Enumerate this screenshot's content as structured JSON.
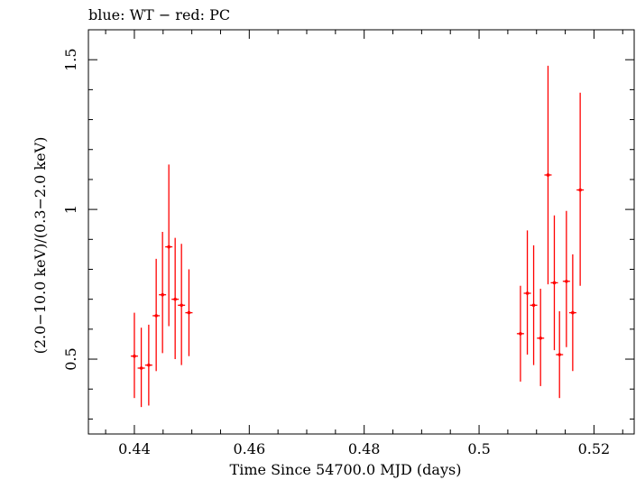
{
  "chart_data": {
    "type": "scatter",
    "title": "blue: WT − red: PC",
    "xlabel": "Time Since 54700.0 MJD (days)",
    "ylabel": "(2.0−10.0 keV)/(0.3−2.0 keV)",
    "xlim": [
      0.432,
      0.527
    ],
    "ylim": [
      0.25,
      1.6
    ],
    "xticks": [
      0.44,
      0.46,
      0.48,
      0.5,
      0.52
    ],
    "xtick_labels": [
      "0.44",
      "0.46",
      "0.48",
      "0.5",
      "0.52"
    ],
    "yticks": [
      0.5,
      1.0,
      1.5
    ],
    "ytick_labels": [
      "0.5",
      "1",
      "1.5"
    ],
    "grid": false,
    "series": [
      {
        "name": "PC",
        "color": "#ff0000",
        "points": [
          {
            "x": 0.44,
            "y": 0.51,
            "ylo": 0.37,
            "yhi": 0.655
          },
          {
            "x": 0.4412,
            "y": 0.47,
            "ylo": 0.34,
            "yhi": 0.605
          },
          {
            "x": 0.4425,
            "y": 0.48,
            "ylo": 0.345,
            "yhi": 0.615
          },
          {
            "x": 0.4438,
            "y": 0.645,
            "ylo": 0.46,
            "yhi": 0.835
          },
          {
            "x": 0.4449,
            "y": 0.715,
            "ylo": 0.52,
            "yhi": 0.925
          },
          {
            "x": 0.446,
            "y": 0.875,
            "ylo": 0.61,
            "yhi": 1.15
          },
          {
            "x": 0.4471,
            "y": 0.7,
            "ylo": 0.5,
            "yhi": 0.905
          },
          {
            "x": 0.4482,
            "y": 0.68,
            "ylo": 0.48,
            "yhi": 0.885
          },
          {
            "x": 0.4495,
            "y": 0.655,
            "ylo": 0.51,
            "yhi": 0.8
          },
          {
            "x": 0.5072,
            "y": 0.585,
            "ylo": 0.425,
            "yhi": 0.745
          },
          {
            "x": 0.5084,
            "y": 0.72,
            "ylo": 0.515,
            "yhi": 0.93
          },
          {
            "x": 0.5095,
            "y": 0.68,
            "ylo": 0.48,
            "yhi": 0.88
          },
          {
            "x": 0.5107,
            "y": 0.57,
            "ylo": 0.41,
            "yhi": 0.735
          },
          {
            "x": 0.512,
            "y": 1.115,
            "ylo": 0.75,
            "yhi": 1.48
          },
          {
            "x": 0.5131,
            "y": 0.755,
            "ylo": 0.53,
            "yhi": 0.98
          },
          {
            "x": 0.514,
            "y": 0.515,
            "ylo": 0.37,
            "yhi": 0.66
          },
          {
            "x": 0.5152,
            "y": 0.76,
            "ylo": 0.54,
            "yhi": 0.995
          },
          {
            "x": 0.5163,
            "y": 0.655,
            "ylo": 0.46,
            "yhi": 0.85
          },
          {
            "x": 0.5176,
            "y": 1.065,
            "ylo": 0.745,
            "yhi": 1.39
          }
        ]
      }
    ]
  }
}
